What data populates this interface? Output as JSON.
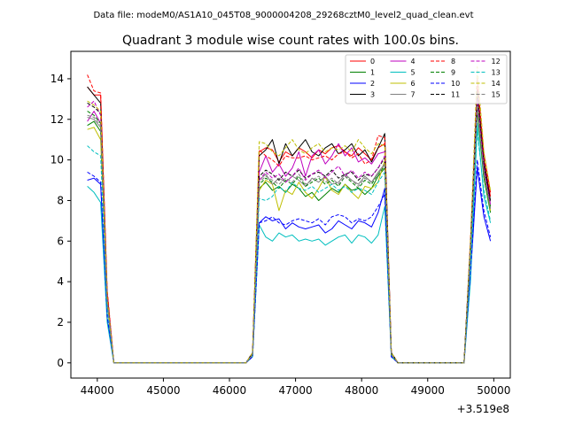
{
  "chart_data": {
    "type": "line",
    "suptitle": "Data file: modeM0/AS1A10_045T08_9000004208_29268cztM0_level2_quad_clean.evt",
    "title": "Quadrant 3 module wise count rates with 100.0s bins.",
    "xlabel": "",
    "ylabel": "",
    "x_offset_label": "+3.519e8",
    "xlim": [
      43600,
      50250
    ],
    "ylim": [
      -0.75,
      15.35
    ],
    "xticks": [
      44000,
      45000,
      46000,
      47000,
      48000,
      49000,
      50000
    ],
    "yticks": [
      0,
      2,
      4,
      6,
      8,
      10,
      12,
      14
    ],
    "x": [
      43850,
      43950,
      44050,
      44150,
      44250,
      44350,
      44450,
      44550,
      44650,
      44750,
      44850,
      44950,
      45050,
      45150,
      45250,
      45350,
      45450,
      45550,
      45650,
      45750,
      45850,
      45950,
      46050,
      46150,
      46250,
      46350,
      46450,
      46550,
      46650,
      46750,
      46850,
      46950,
      47050,
      47150,
      47250,
      47350,
      47450,
      47550,
      47650,
      47750,
      47850,
      47950,
      48050,
      48150,
      48250,
      48350,
      48450,
      48550,
      48650,
      48750,
      48850,
      48950,
      49050,
      49150,
      49250,
      49350,
      49450,
      49550,
      49650,
      49750,
      49850,
      49950
    ],
    "legend_position": "top-right",
    "series": [
      {
        "name": "0",
        "color": "#ff0000",
        "dash": false,
        "values": [
          13.6,
          13.2,
          13.2,
          3.5,
          0,
          0,
          0,
          0,
          0,
          0,
          0,
          0,
          0,
          0,
          0,
          0,
          0,
          0,
          0,
          0,
          0,
          0,
          0,
          0,
          0,
          0.5,
          10.4,
          10.6,
          10.5,
          9.9,
          10.4,
          10.2,
          10.6,
          10.4,
          10.1,
          10.5,
          10.3,
          10.6,
          10.7,
          10.4,
          10.2,
          10.6,
          10.3,
          10.0,
          10.6,
          10.8,
          0.5,
          0,
          0,
          0,
          0,
          0,
          0,
          0,
          0,
          0,
          0,
          0,
          6.0,
          13.6,
          10.0,
          8.2
        ]
      },
      {
        "name": "1",
        "color": "#008000",
        "dash": false,
        "values": [
          11.7,
          11.9,
          11.4,
          3.0,
          0,
          0,
          0,
          0,
          0,
          0,
          0,
          0,
          0,
          0,
          0,
          0,
          0,
          0,
          0,
          0,
          0,
          0,
          0,
          0,
          0,
          0.4,
          8.6,
          8.9,
          8.5,
          8.7,
          8.4,
          8.8,
          8.6,
          8.2,
          8.4,
          8.0,
          8.3,
          8.6,
          8.4,
          8.8,
          8.5,
          8.6,
          8.3,
          8.6,
          9.2,
          9.6,
          0.4,
          0,
          0,
          0,
          0,
          0,
          0,
          0,
          0,
          0,
          0,
          0,
          5.5,
          12.4,
          9.1,
          7.4
        ]
      },
      {
        "name": "2",
        "color": "#0000ff",
        "dash": false,
        "values": [
          9.0,
          9.1,
          8.8,
          2.2,
          0,
          0,
          0,
          0,
          0,
          0,
          0,
          0,
          0,
          0,
          0,
          0,
          0,
          0,
          0,
          0,
          0,
          0,
          0,
          0,
          0,
          0.3,
          6.9,
          7.2,
          7.0,
          7.1,
          6.6,
          6.9,
          6.7,
          6.6,
          6.7,
          6.8,
          6.4,
          6.6,
          7.0,
          6.8,
          6.6,
          7.0,
          6.9,
          6.7,
          7.4,
          8.6,
          0.3,
          0,
          0,
          0,
          0,
          0,
          0,
          0,
          0,
          0,
          0,
          0,
          4.4,
          9.6,
          7.2,
          6.0
        ]
      },
      {
        "name": "3",
        "color": "#000000",
        "dash": false,
        "values": [
          13.6,
          13.2,
          12.8,
          3.3,
          0,
          0,
          0,
          0,
          0,
          0,
          0,
          0,
          0,
          0,
          0,
          0,
          0,
          0,
          0,
          0,
          0,
          0,
          0,
          0,
          0,
          0.5,
          10.2,
          10.5,
          11.0,
          9.8,
          10.8,
          10.2,
          10.6,
          11.0,
          10.4,
          10.2,
          10.6,
          10.8,
          10.3,
          10.5,
          10.8,
          10.2,
          10.5,
          9.9,
          10.6,
          11.3,
          0.5,
          0,
          0,
          0,
          0,
          0,
          0,
          0,
          0,
          0,
          0,
          0,
          6.0,
          13.4,
          9.9,
          8.0
        ]
      },
      {
        "name": "4",
        "color": "#bf00bf",
        "dash": false,
        "values": [
          11.9,
          12.4,
          11.8,
          3.1,
          0,
          0,
          0,
          0,
          0,
          0,
          0,
          0,
          0,
          0,
          0,
          0,
          0,
          0,
          0,
          0,
          0,
          0,
          0,
          0,
          0,
          0.4,
          9.4,
          10.2,
          9.4,
          9.8,
          9.2,
          9.6,
          10.4,
          9.2,
          10.2,
          10.5,
          9.8,
          10.2,
          10.8,
          10.2,
          10.6,
          9.9,
          10.1,
          9.8,
          10.3,
          10.4,
          0.4,
          0,
          0,
          0,
          0,
          0,
          0,
          0,
          0,
          0,
          0,
          0,
          5.7,
          12.8,
          9.6,
          7.8
        ]
      },
      {
        "name": "5",
        "color": "#00bfbf",
        "dash": false,
        "values": [
          8.7,
          8.4,
          7.9,
          2.0,
          0,
          0,
          0,
          0,
          0,
          0,
          0,
          0,
          0,
          0,
          0,
          0,
          0,
          0,
          0,
          0,
          0,
          0,
          0,
          0,
          0,
          0.3,
          6.8,
          6.2,
          6.0,
          6.4,
          6.2,
          6.3,
          6.0,
          6.1,
          6.0,
          6.1,
          5.8,
          6.0,
          6.2,
          6.3,
          5.9,
          6.3,
          6.2,
          5.9,
          6.3,
          7.7,
          0.3,
          0,
          0,
          0,
          0,
          0,
          0,
          0,
          0,
          0,
          0,
          0,
          4.1,
          11.8,
          8.2,
          6.9
        ]
      },
      {
        "name": "6",
        "color": "#bfbf00",
        "dash": false,
        "values": [
          11.5,
          11.6,
          11.0,
          2.9,
          0,
          0,
          0,
          0,
          0,
          0,
          0,
          0,
          0,
          0,
          0,
          0,
          0,
          0,
          0,
          0,
          0,
          0,
          0,
          0,
          0,
          0.4,
          8.5,
          9.0,
          8.8,
          7.5,
          8.5,
          8.3,
          8.9,
          8.4,
          8.1,
          8.6,
          9.2,
          8.5,
          8.3,
          8.8,
          8.4,
          8.1,
          8.7,
          8.6,
          8.9,
          10.0,
          0.4,
          0,
          0,
          0,
          0,
          0,
          0,
          0,
          0,
          0,
          0,
          0,
          5.5,
          13.2,
          9.4,
          7.5
        ]
      },
      {
        "name": "7",
        "color": "#808080",
        "dash": false,
        "values": [
          12.1,
          12.0,
          11.6,
          3.0,
          0,
          0,
          0,
          0,
          0,
          0,
          0,
          0,
          0,
          0,
          0,
          0,
          0,
          0,
          0,
          0,
          0,
          0,
          0,
          0,
          0,
          0.4,
          9.0,
          9.3,
          8.8,
          9.1,
          8.9,
          9.2,
          9.0,
          8.7,
          9.1,
          8.9,
          9.2,
          8.8,
          8.9,
          9.3,
          9.0,
          8.8,
          9.2,
          8.9,
          9.4,
          9.8,
          0.4,
          0,
          0,
          0,
          0,
          0,
          0,
          0,
          0,
          0,
          0,
          0,
          5.7,
          12.6,
          9.4,
          7.6
        ]
      },
      {
        "name": "8",
        "color": "#ff0000",
        "dash": true,
        "values": [
          14.2,
          13.4,
          13.3,
          3.6,
          0,
          0,
          0,
          0,
          0,
          0,
          0,
          0,
          0,
          0,
          0,
          0,
          0,
          0,
          0,
          0,
          0,
          0,
          0,
          0,
          0,
          0.5,
          10.5,
          10.2,
          10.0,
          9.7,
          10.2,
          10.1,
          10.1,
          10.2,
          10.0,
          10.1,
          10.2,
          10.0,
          10.3,
          10.4,
          10.1,
          10.3,
          9.8,
          10.0,
          11.2,
          11.1,
          0.5,
          0,
          0,
          0,
          0,
          0,
          0,
          0,
          0,
          0,
          0,
          0,
          6.2,
          14.0,
          10.3,
          8.4
        ]
      },
      {
        "name": "9",
        "color": "#008000",
        "dash": true,
        "values": [
          12.4,
          12.2,
          11.8,
          3.1,
          0,
          0,
          0,
          0,
          0,
          0,
          0,
          0,
          0,
          0,
          0,
          0,
          0,
          0,
          0,
          0,
          0,
          0,
          0,
          0,
          0,
          0.4,
          8.8,
          9.1,
          8.9,
          8.6,
          9.0,
          8.8,
          9.2,
          8.7,
          8.9,
          9.1,
          8.8,
          9.0,
          8.7,
          9.2,
          8.9,
          8.6,
          9.0,
          8.8,
          9.3,
          9.7,
          0.4,
          0,
          0,
          0,
          0,
          0,
          0,
          0,
          0,
          0,
          0,
          0,
          5.8,
          12.9,
          9.5,
          7.7
        ]
      },
      {
        "name": "10",
        "color": "#0000ff",
        "dash": true,
        "values": [
          9.4,
          9.2,
          8.9,
          2.3,
          0,
          0,
          0,
          0,
          0,
          0,
          0,
          0,
          0,
          0,
          0,
          0,
          0,
          0,
          0,
          0,
          0,
          0,
          0,
          0,
          0,
          0.3,
          6.9,
          7.0,
          7.2,
          6.9,
          6.8,
          7.0,
          7.1,
          7.0,
          6.9,
          7.1,
          6.8,
          7.2,
          7.3,
          7.2,
          6.9,
          7.1,
          7.0,
          7.2,
          7.7,
          8.3,
          0.3,
          0,
          0,
          0,
          0,
          0,
          0,
          0,
          0,
          0,
          0,
          0,
          4.6,
          10.0,
          7.5,
          6.2
        ]
      },
      {
        "name": "11",
        "color": "#000000",
        "dash": true,
        "values": [
          12.8,
          12.6,
          12.3,
          3.2,
          0,
          0,
          0,
          0,
          0,
          0,
          0,
          0,
          0,
          0,
          0,
          0,
          0,
          0,
          0,
          0,
          0,
          0,
          0,
          0,
          0,
          0.5,
          9.2,
          9.5,
          9.3,
          9.0,
          9.4,
          9.2,
          9.5,
          9.1,
          9.3,
          9.4,
          9.2,
          9.5,
          9.1,
          9.3,
          9.4,
          9.0,
          9.3,
          9.2,
          9.6,
          10.1,
          0.5,
          0,
          0,
          0,
          0,
          0,
          0,
          0,
          0,
          0,
          0,
          0,
          5.9,
          13.1,
          9.7,
          7.9
        ]
      },
      {
        "name": "12",
        "color": "#bf00bf",
        "dash": true,
        "values": [
          12.6,
          12.9,
          12.2,
          3.2,
          0,
          0,
          0,
          0,
          0,
          0,
          0,
          0,
          0,
          0,
          0,
          0,
          0,
          0,
          0,
          0,
          0,
          0,
          0,
          0,
          0,
          0.4,
          9.0,
          9.4,
          9.1,
          9.3,
          8.9,
          9.2,
          9.6,
          9.0,
          9.3,
          9.5,
          9.1,
          9.4,
          9.7,
          9.2,
          9.5,
          9.1,
          9.4,
          9.2,
          9.6,
          10.2,
          0.4,
          0,
          0,
          0,
          0,
          0,
          0,
          0,
          0,
          0,
          0,
          0,
          5.8,
          13.0,
          9.6,
          7.8
        ]
      },
      {
        "name": "13",
        "color": "#00bfbf",
        "dash": true,
        "values": [
          10.7,
          10.4,
          10.2,
          2.7,
          0,
          0,
          0,
          0,
          0,
          0,
          0,
          0,
          0,
          0,
          0,
          0,
          0,
          0,
          0,
          0,
          0,
          0,
          0,
          0,
          0,
          0.4,
          8.1,
          8.0,
          8.2,
          8.7,
          8.4,
          8.9,
          8.6,
          8.5,
          8.7,
          8.4,
          8.6,
          8.8,
          8.5,
          8.7,
          8.4,
          8.6,
          8.5,
          8.3,
          8.9,
          9.4,
          0.4,
          0,
          0,
          0,
          0,
          0,
          0,
          0,
          0,
          0,
          0,
          0,
          5.2,
          11.4,
          8.5,
          7.0
        ]
      },
      {
        "name": "14",
        "color": "#bfbf00",
        "dash": true,
        "values": [
          12.9,
          12.7,
          12.4,
          3.2,
          0,
          0,
          0,
          0,
          0,
          0,
          0,
          0,
          0,
          0,
          0,
          0,
          0,
          0,
          0,
          0,
          0,
          0,
          0,
          0,
          0,
          0.5,
          10.9,
          10.8,
          10.4,
          10.2,
          10.6,
          11.0,
          10.5,
          10.3,
          10.6,
          10.8,
          10.4,
          10.6,
          10.5,
          10.7,
          10.4,
          11.0,
          10.6,
          10.3,
          10.8,
          10.7,
          0.5,
          0,
          0,
          0,
          0,
          0,
          0,
          0,
          0,
          0,
          0,
          0,
          6.1,
          14.6,
          10.4,
          8.5
        ]
      },
      {
        "name": "15",
        "color": "#808080",
        "dash": true,
        "values": [
          12.2,
          12.1,
          11.7,
          3.1,
          0,
          0,
          0,
          0,
          0,
          0,
          0,
          0,
          0,
          0,
          0,
          0,
          0,
          0,
          0,
          0,
          0,
          0,
          0,
          0,
          0,
          0.4,
          8.9,
          9.2,
          9.0,
          8.8,
          9.1,
          8.9,
          9.3,
          8.8,
          9.0,
          9.2,
          8.9,
          9.1,
          8.8,
          9.2,
          9.0,
          8.7,
          9.1,
          8.9,
          9.3,
          9.8,
          0.4,
          0,
          0,
          0,
          0,
          0,
          0,
          0,
          0,
          0,
          0,
          0,
          5.7,
          12.7,
          9.4,
          7.6
        ]
      }
    ]
  }
}
